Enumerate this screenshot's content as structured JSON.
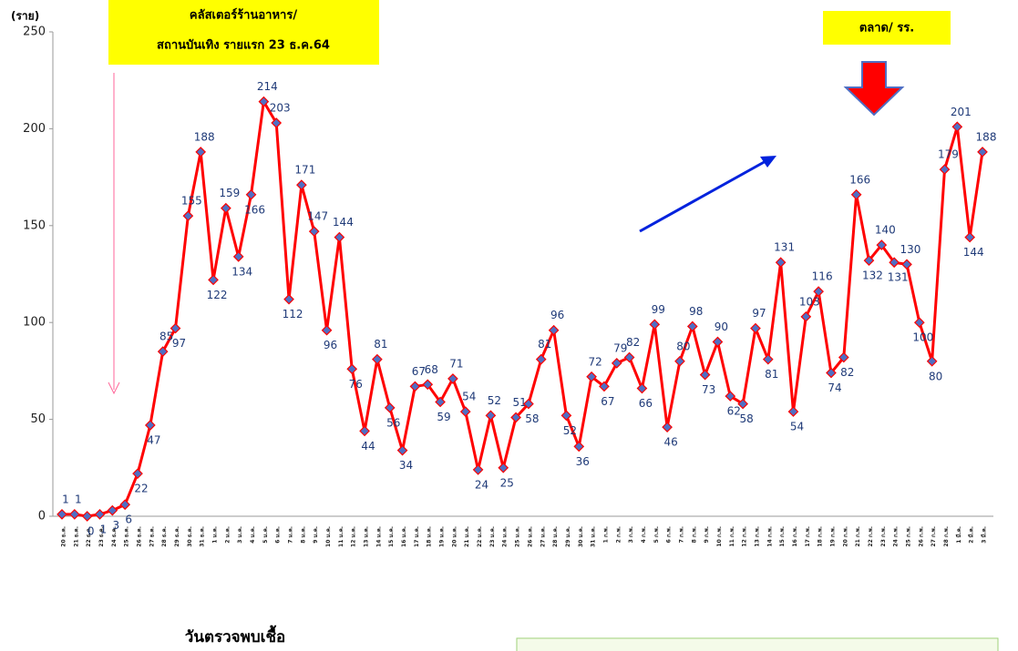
{
  "chart_data": {
    "type": "line",
    "y_unit": "(ราย)",
    "x_label": "วันตรวจพบเชื้อ",
    "annotation_cluster": [
      "คลัสเตอร์ร้านอาหาร/",
      "สถานบันเทิง รายแรก  23 ธ.ค.64"
    ],
    "annotation_market": "ตลาด/ รร.",
    "categories": [
      "20 ธ.ค.",
      "21 ธ.ค.",
      "22 ธ.ค.",
      "23 ธ.ค.",
      "24 ธ.ค.",
      "25 ธ.ค.",
      "26 ธ.ค.",
      "27 ธ.ค.",
      "28 ธ.ค.",
      "29 ธ.ค.",
      "30 ธ.ค.",
      "31 ธ.ค.",
      "1 ม.ค.",
      "2 ม.ค.",
      "3 ม.ค.",
      "4 ม.ค.",
      "5 ม.ค.",
      "6 ม.ค.",
      "7 ม.ค.",
      "8 ม.ค.",
      "9 ม.ค.",
      "10 ม.ค.",
      "11 ม.ค.",
      "12 ม.ค.",
      "13 ม.ค.",
      "14 ม.ค.",
      "15 ม.ค.",
      "16 ม.ค.",
      "17 ม.ค.",
      "18 ม.ค.",
      "19 ม.ค.",
      "20 ม.ค.",
      "21 ม.ค.",
      "22 ม.ค.",
      "23 ม.ค.",
      "24 ม.ค.",
      "25 ม.ค.",
      "26 ม.ค.",
      "27 ม.ค.",
      "28 ม.ค.",
      "29 ม.ค.",
      "30 ม.ค.",
      "31 ม.ค.",
      "1 ก.พ.",
      "2 ก.พ.",
      "3 ก.พ.",
      "4 ก.พ.",
      "5 ก.พ.",
      "6 ก.พ.",
      "7 ก.พ.",
      "8 ก.พ.",
      "9 ก.พ.",
      "10 ก.พ.",
      "11 ก.พ.",
      "12 ก.พ.",
      "13 ก.พ.",
      "14 ก.พ.",
      "15 ก.พ.",
      "16 ก.พ.",
      "17 ก.พ.",
      "18 ก.พ.",
      "19 ก.พ.",
      "20 ก.พ.",
      "21 ก.พ.",
      "22 ก.พ.",
      "23 ก.พ.",
      "24 ก.พ.",
      "25 ก.พ.",
      "26 ก.พ.",
      "27 ก.พ.",
      "28 ก.พ.",
      "1 มี.ค.",
      "2 มี.ค.",
      "3 มี.ค."
    ],
    "series": [
      {
        "color": "#ff0000",
        "marker_color": "#4f6fc4",
        "values": [
          1,
          1,
          0,
          1,
          3,
          6,
          22,
          47,
          85,
          97,
          155,
          188,
          122,
          159,
          134,
          166,
          214,
          203,
          112,
          171,
          147,
          96,
          144,
          76,
          44,
          81,
          56,
          34,
          67,
          68,
          59,
          71,
          54,
          24,
          52,
          25,
          51,
          58,
          81,
          96,
          52,
          36,
          72,
          67,
          79,
          82,
          66,
          99,
          46,
          80,
          98,
          73,
          90,
          62,
          58,
          97,
          81,
          131,
          54,
          103,
          116,
          74,
          82,
          166,
          132,
          140,
          131,
          130,
          100,
          80,
          179,
          201,
          144,
          188
        ]
      }
    ],
    "ylim": [
      0,
      250
    ],
    "yticks": [
      0,
      50,
      100,
      150,
      200,
      250
    ],
    "grid": false
  }
}
